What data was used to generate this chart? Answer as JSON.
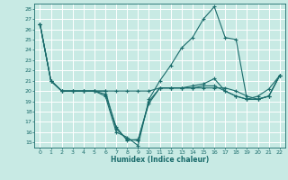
{
  "xlabel": "Humidex (Indice chaleur)",
  "bg_color": "#c8eae4",
  "grid_color": "#ffffff",
  "line_color": "#1a6b6b",
  "xlim": [
    -0.5,
    22.5
  ],
  "ylim": [
    14.5,
    28.5
  ],
  "xticks": [
    0,
    1,
    2,
    3,
    4,
    5,
    6,
    7,
    8,
    9,
    10,
    11,
    12,
    13,
    14,
    15,
    16,
    17,
    18,
    19,
    20,
    21,
    22
  ],
  "yticks": [
    15,
    16,
    17,
    18,
    19,
    20,
    21,
    22,
    23,
    24,
    25,
    26,
    27,
    28
  ],
  "series": [
    [
      26.5,
      21.0,
      20.0,
      20.0,
      20.0,
      20.0,
      19.5,
      16.0,
      15.5,
      14.7,
      19.2,
      21.0,
      22.5,
      24.2,
      25.2,
      27.0,
      28.2,
      25.2,
      25.0,
      19.2,
      19.5,
      20.2,
      21.5
    ],
    [
      26.5,
      21.0,
      20.0,
      20.0,
      20.0,
      20.0,
      19.7,
      16.5,
      15.2,
      15.3,
      18.8,
      20.3,
      20.3,
      20.3,
      20.3,
      20.3,
      20.3,
      20.3,
      20.0,
      19.5,
      19.2,
      19.5,
      21.5
    ],
    [
      26.5,
      21.0,
      20.0,
      20.0,
      20.0,
      20.0,
      20.0,
      16.3,
      15.3,
      15.2,
      19.0,
      20.3,
      20.3,
      20.3,
      20.3,
      20.5,
      20.5,
      20.0,
      19.5,
      19.2,
      19.2,
      19.5,
      21.5
    ],
    [
      26.5,
      21.0,
      20.0,
      20.0,
      20.0,
      20.0,
      20.0,
      20.0,
      20.0,
      20.0,
      20.0,
      20.3,
      20.3,
      20.3,
      20.5,
      20.7,
      21.2,
      20.0,
      19.5,
      19.2,
      19.2,
      19.5,
      21.5
    ]
  ]
}
